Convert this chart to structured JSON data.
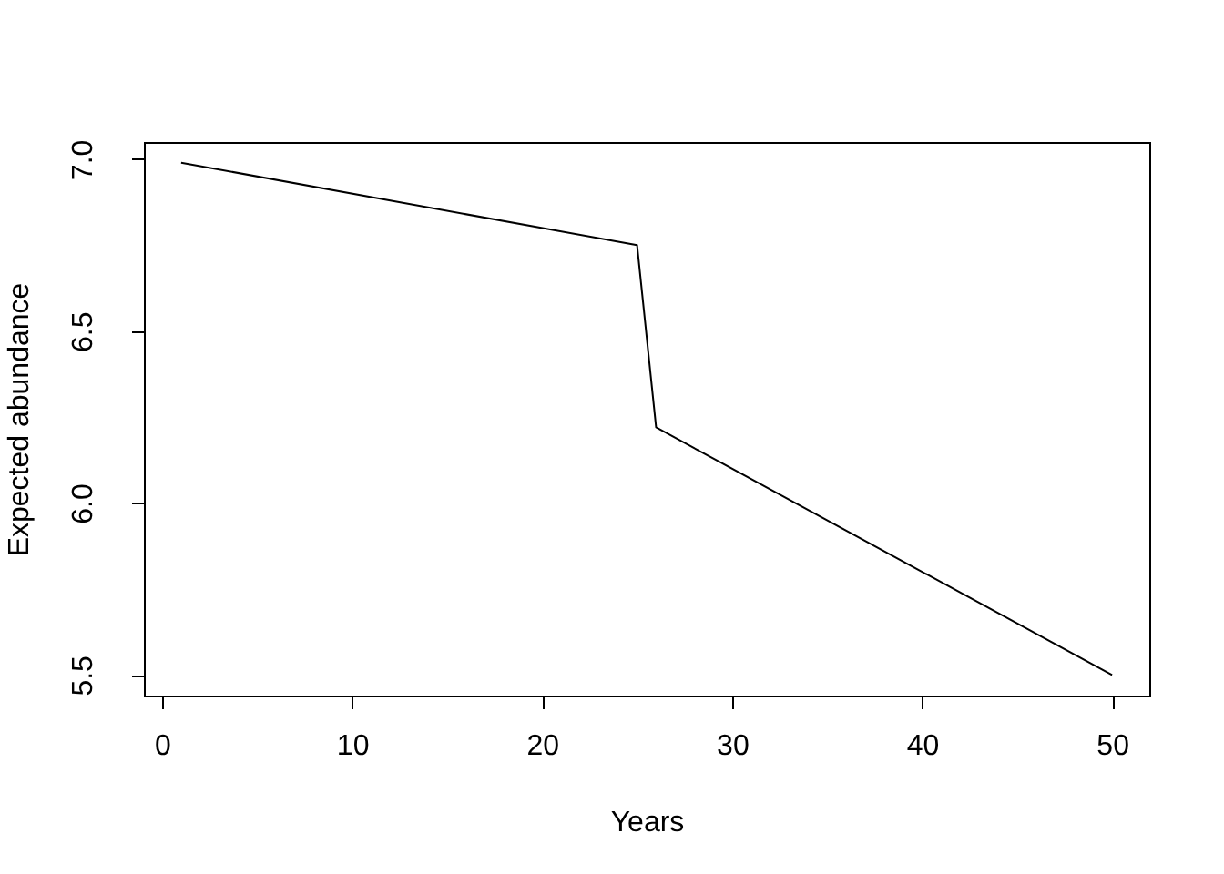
{
  "chart_data": {
    "type": "line",
    "xlabel": "Years",
    "ylabel": "Expected abundance",
    "x": [
      1,
      25,
      26,
      50
    ],
    "series": [
      {
        "color": "#000000",
        "values": [
          6.99,
          6.75,
          6.22,
          5.5
        ]
      }
    ],
    "xlim": [
      -0.96,
      51.96
    ],
    "ylim": [
      5.44,
      7.05
    ],
    "xticks": [
      0,
      10,
      20,
      30,
      40,
      50
    ],
    "yticks": [
      5.5,
      {
        "value": 6,
        "label": "6.0"
      },
      6.5,
      {
        "value": 7,
        "label": "7.0"
      }
    ],
    "line_style": "solid"
  }
}
